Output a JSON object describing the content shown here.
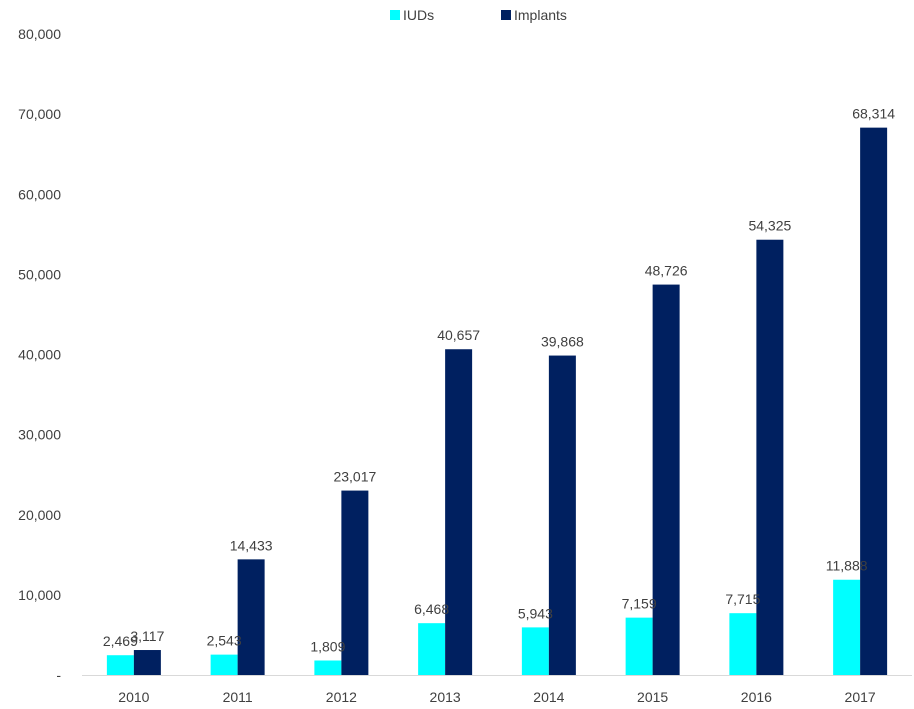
{
  "chart_data": {
    "type": "bar",
    "title": "",
    "xlabel": "",
    "ylabel": "",
    "categories": [
      "2010",
      "2011",
      "2012",
      "2013",
      "2014",
      "2015",
      "2016",
      "2017"
    ],
    "series": [
      {
        "name": "IUDs",
        "color": "#00ffff",
        "values": [
          2469,
          2543,
          1809,
          6468,
          5943,
          7159,
          7715,
          11888
        ],
        "labels": [
          "2,469",
          "2,543",
          "1,809",
          "6,468",
          "5,943",
          "7,159",
          "7,715",
          "11,888"
        ]
      },
      {
        "name": "Implants",
        "color": "#002060",
        "values": [
          3117,
          14433,
          23017,
          40657,
          39868,
          48726,
          54325,
          68314
        ],
        "labels": [
          "3,117",
          "14,433",
          "23,017",
          "40,657",
          "39,868",
          "48,726",
          "54,325",
          "68,314"
        ]
      }
    ],
    "ylim": [
      0,
      80000
    ],
    "yticks": [
      "-",
      "10,000",
      "20,000",
      "30,000",
      "40,000",
      "50,000",
      "60,000",
      "70,000",
      "80,000"
    ],
    "legend_position": "top-center",
    "grid": false
  }
}
